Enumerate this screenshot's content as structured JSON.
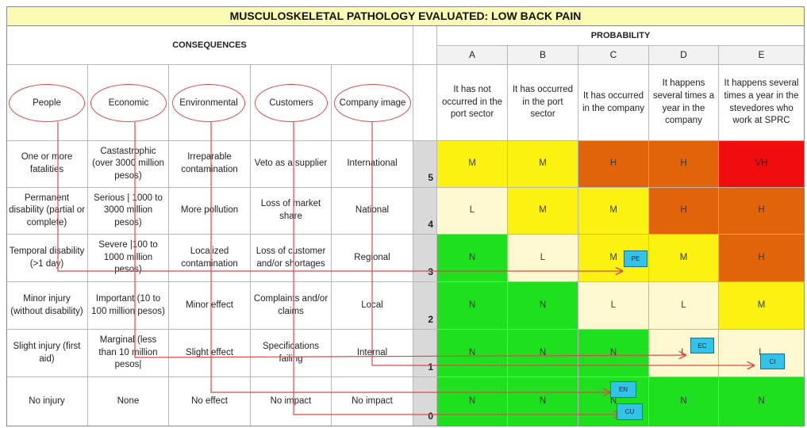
{
  "title": "MUSCULOSKELETAL PATHOLOGY EVALUATED: LOW BACK PAIN",
  "consequences_header": "CONSEQUENCES",
  "probability_header": "PROBABILITY",
  "categories": [
    "People",
    "Economic",
    "Environmental",
    "Customers",
    "Company image"
  ],
  "letters": [
    "A",
    "B",
    "C",
    "D",
    "E"
  ],
  "probability_descriptions": [
    "It has not occurred in the port sector",
    "It has occurred in the port sector",
    "It has occurred in the company",
    "It happens several times a year in the company",
    "It happens several times a year in the stevedores who work at SPRC"
  ],
  "rows": [
    {
      "level": "5",
      "cells": [
        "One or more fatalities",
        "Castastrophic (over 3000 million pesos)",
        "Irreparable contamination",
        "Veto as a supplier",
        "International"
      ],
      "ratings": [
        "M",
        "M",
        "H",
        "H",
        "VH"
      ]
    },
    {
      "level": "4",
      "cells": [
        "Permanent disability (partial or complete)",
        "Serious | 1000 to 3000 million pesos)",
        "More pollution",
        "Loss of market share",
        "National"
      ],
      "ratings": [
        "L",
        "M",
        "M",
        "H",
        "H"
      ]
    },
    {
      "level": "3",
      "cells": [
        "Temporal disability (>1 day)",
        "Severe |100 to 1000 million pesos)",
        "Localized contamination",
        "Loss of customer and/or shortages",
        "Regional"
      ],
      "ratings": [
        "N",
        "L",
        "M",
        "M",
        "H"
      ]
    },
    {
      "level": "2",
      "cells": [
        "Minor injury (without disability)",
        "Important (10 to 100 million pesos)",
        "Minor effect",
        "Complaints and/or claims",
        "Local"
      ],
      "ratings": [
        "N",
        "N",
        "L",
        "L",
        "M"
      ]
    },
    {
      "level": "1",
      "cells": [
        "Slight injury (first aid)",
        "Marginal (less than 10 million pesos|",
        "Slight effect",
        "Specifications failing",
        "Internal"
      ],
      "ratings": [
        "N",
        "N",
        "N",
        "L",
        "L"
      ]
    },
    {
      "level": "0",
      "cells": [
        "No injury",
        "None",
        "No effect",
        "No impact",
        "No impact"
      ],
      "ratings": [
        "N",
        "N",
        "N",
        "N",
        "N"
      ]
    }
  ],
  "rating_colors": {
    "N": "#1fe01f",
    "L": "#fdf8cf",
    "M": "#fbf212",
    "H": "#e1640b",
    "VH": "#f00d0d"
  },
  "rating_text_colors": {
    "N": "#3a3a3a",
    "L": "#3a3a3a",
    "M": "#3a3a3a",
    "H": "#3a3a3a",
    "VH": "#5a0000"
  },
  "markers": [
    "PE",
    "EC",
    "CI",
    "EN",
    "CU"
  ],
  "line_color": "#d84b4b",
  "marker_color": "#33c3e8"
}
